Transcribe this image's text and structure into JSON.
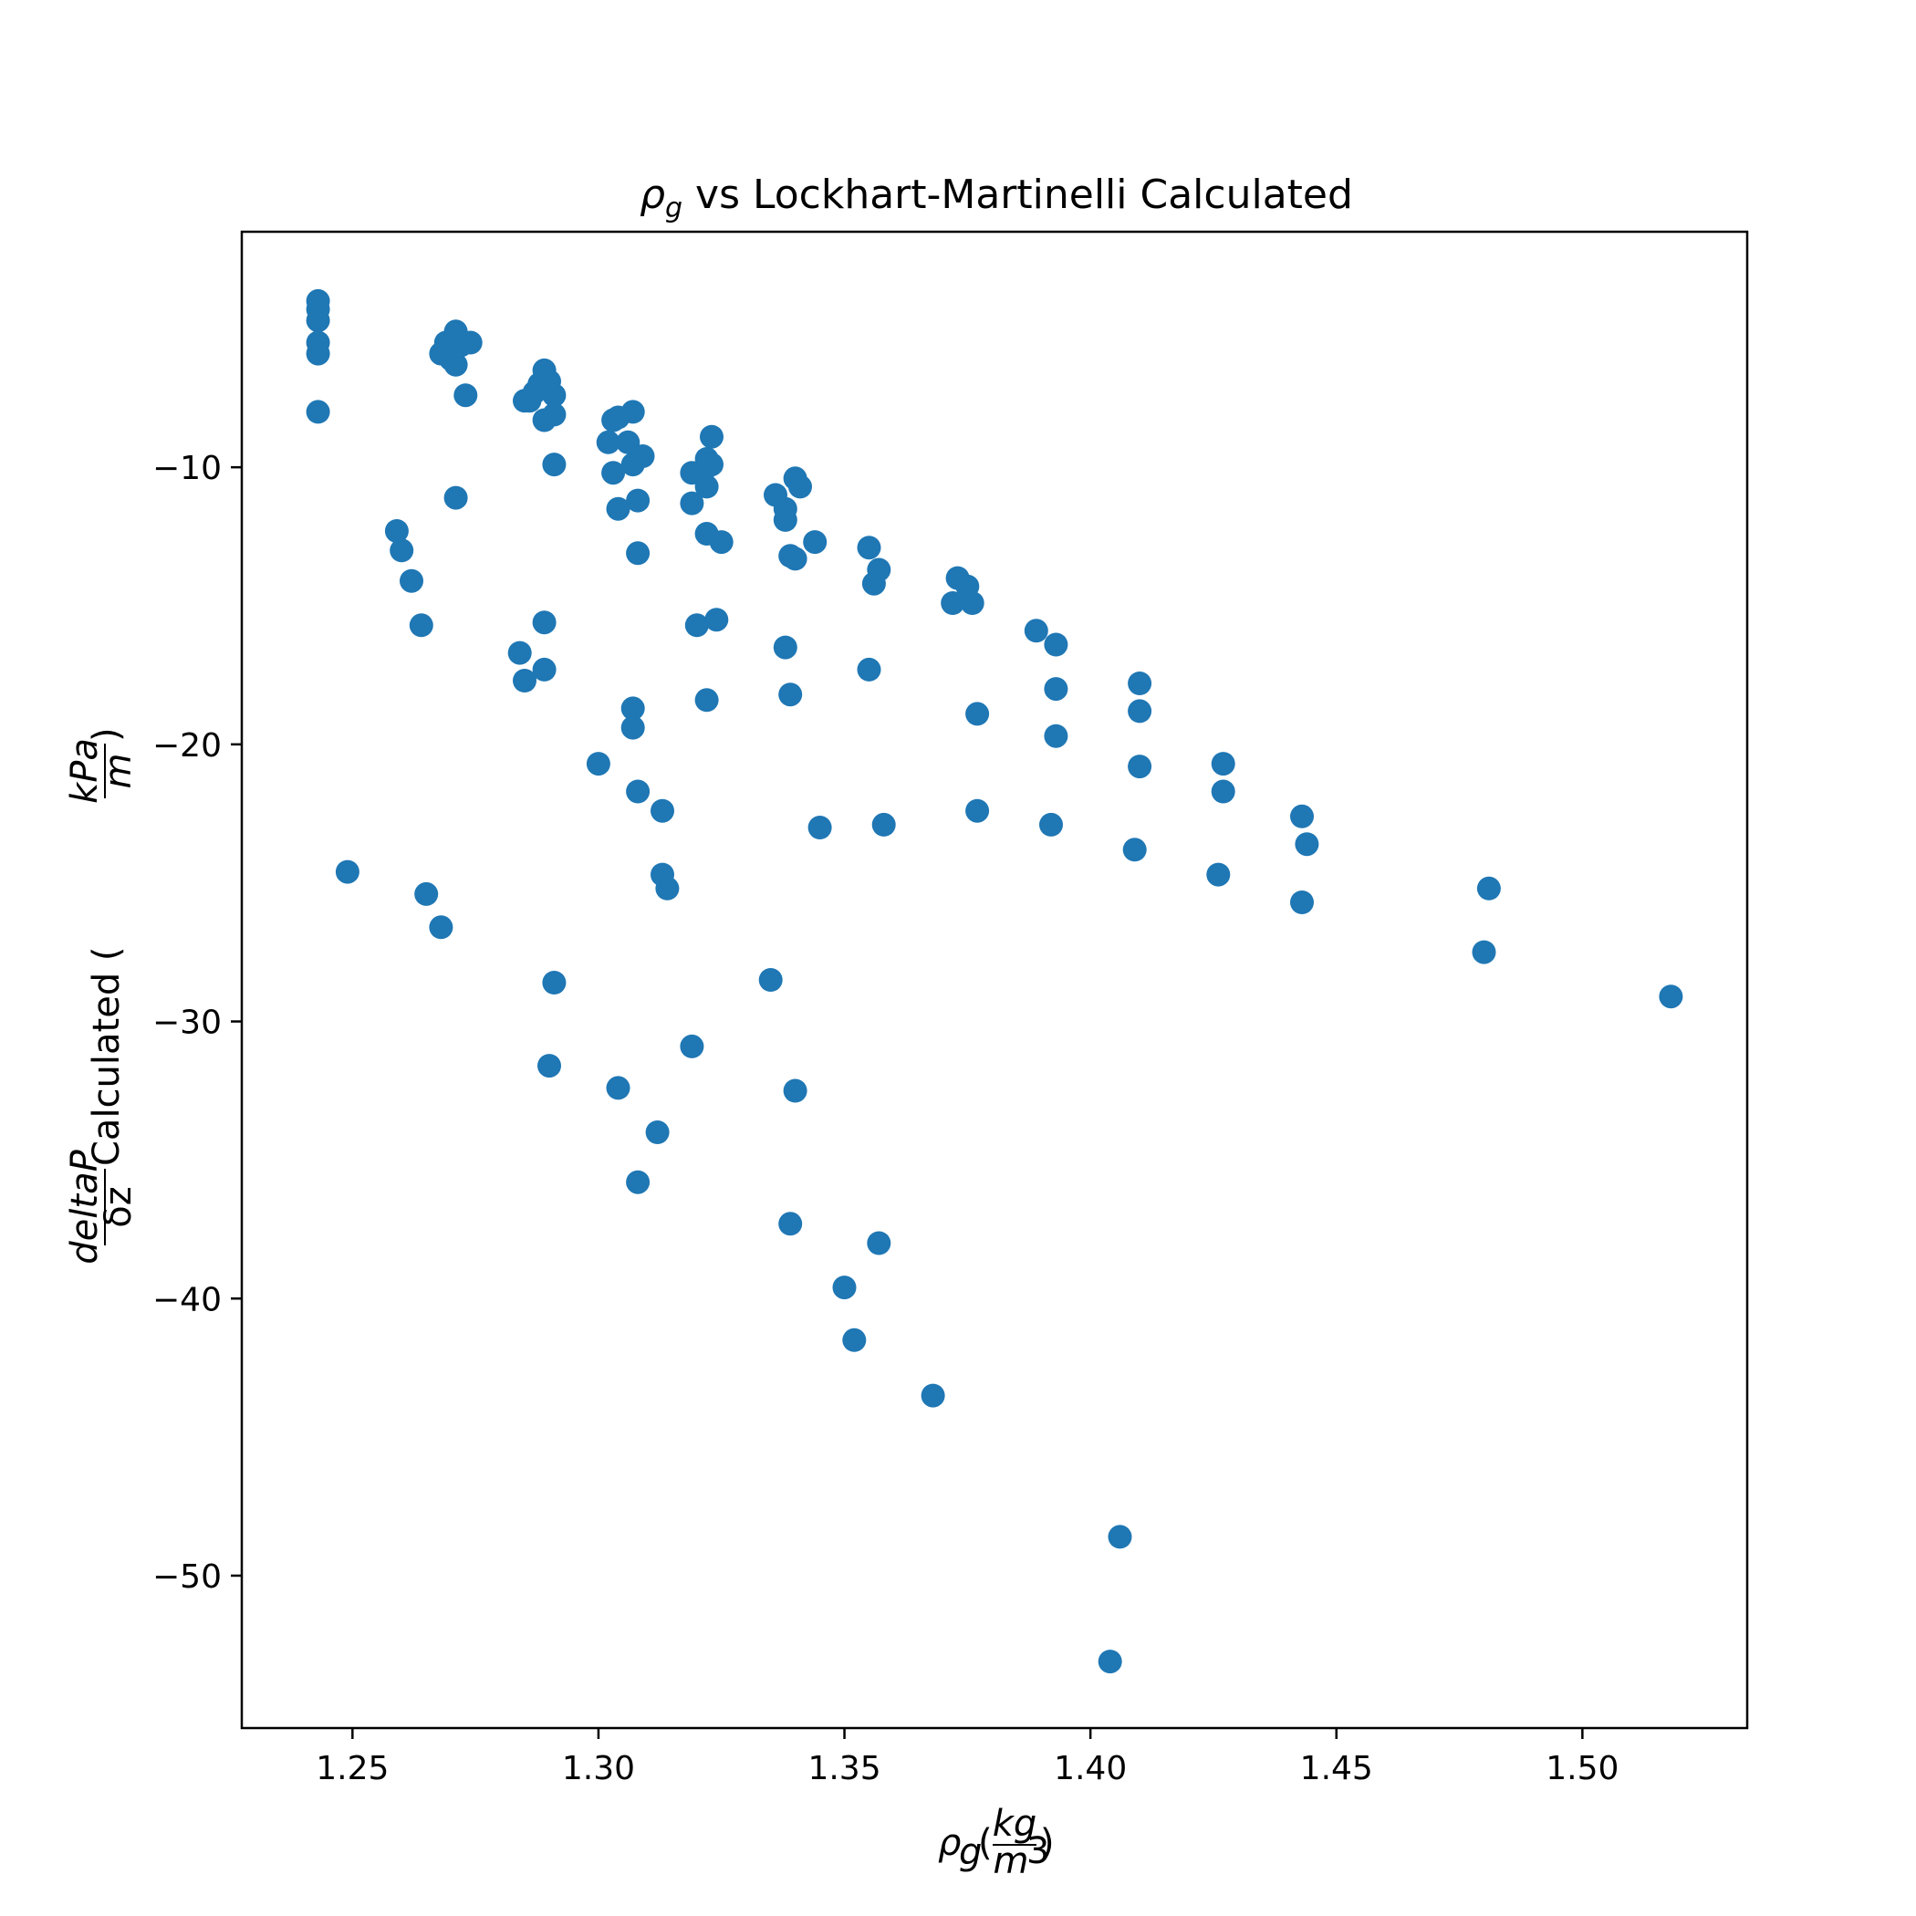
{
  "chart_data": {
    "type": "scatter",
    "title": {
      "symbol": "ρ",
      "subscript": "g",
      "rest": " vs Lockhart-Martinelli Calculated"
    },
    "xlabel": {
      "symbol": "ρ",
      "subscript": "g",
      "open": "(",
      "numerator": "kg",
      "denominator": "m",
      "denominator_power": "3",
      "close": ")"
    },
    "ylabel": {
      "frac_numerator": "deltaP",
      "frac_denominator": "δz",
      "text": " Calculated (",
      "unit_numerator": "kPa",
      "unit_denominator": "m",
      "close": ")"
    },
    "xlim": [
      1.2275,
      1.5335
    ],
    "ylim": [
      -55.5,
      -1.5
    ],
    "xticks": [
      1.25,
      1.3,
      1.35,
      1.4,
      1.45,
      1.5
    ],
    "xtick_labels": [
      "1.25",
      "1.30",
      "1.35",
      "1.40",
      "1.45",
      "1.50"
    ],
    "yticks": [
      -10,
      -20,
      -30,
      -40,
      -50
    ],
    "ytick_labels": [
      "−10",
      "−20",
      "−30",
      "−40",
      "−50"
    ],
    "grid": false,
    "marker_color": "#1f77b4",
    "points": [
      [
        1.243,
        -4.0
      ],
      [
        1.243,
        -4.3
      ],
      [
        1.243,
        -4.7
      ],
      [
        1.243,
        -5.5
      ],
      [
        1.243,
        -5.9
      ],
      [
        1.243,
        -8.0
      ],
      [
        1.249,
        -24.6
      ],
      [
        1.259,
        -12.3
      ],
      [
        1.26,
        -13.0
      ],
      [
        1.262,
        -14.1
      ],
      [
        1.264,
        -15.7
      ],
      [
        1.265,
        -25.4
      ],
      [
        1.268,
        -26.6
      ],
      [
        1.268,
        -5.9
      ],
      [
        1.269,
        -5.5
      ],
      [
        1.27,
        -6.1
      ],
      [
        1.271,
        -5.1
      ],
      [
        1.271,
        -6.3
      ],
      [
        1.272,
        -5.6
      ],
      [
        1.274,
        -5.5
      ],
      [
        1.273,
        -7.4
      ],
      [
        1.271,
        -11.1
      ],
      [
        1.285,
        -7.6
      ],
      [
        1.286,
        -7.6
      ],
      [
        1.287,
        -7.3
      ],
      [
        1.288,
        -7.0
      ],
      [
        1.289,
        -6.5
      ],
      [
        1.29,
        -6.9
      ],
      [
        1.291,
        -7.4
      ],
      [
        1.289,
        -8.3
      ],
      [
        1.291,
        -8.1
      ],
      [
        1.291,
        -9.9
      ],
      [
        1.284,
        -16.7
      ],
      [
        1.285,
        -17.7
      ],
      [
        1.289,
        -15.6
      ],
      [
        1.289,
        -17.3
      ],
      [
        1.291,
        -28.6
      ],
      [
        1.29,
        -31.6
      ],
      [
        1.302,
        -9.1
      ],
      [
        1.303,
        -8.3
      ],
      [
        1.304,
        -8.2
      ],
      [
        1.306,
        -9.1
      ],
      [
        1.307,
        -8.0
      ],
      [
        1.307,
        -9.9
      ],
      [
        1.309,
        -9.6
      ],
      [
        1.303,
        -10.2
      ],
      [
        1.304,
        -11.5
      ],
      [
        1.308,
        -11.2
      ],
      [
        1.308,
        -13.1
      ],
      [
        1.3,
        -20.7
      ],
      [
        1.307,
        -18.7
      ],
      [
        1.307,
        -19.4
      ],
      [
        1.308,
        -21.7
      ],
      [
        1.313,
        -22.4
      ],
      [
        1.313,
        -24.7
      ],
      [
        1.314,
        -25.2
      ],
      [
        1.304,
        -32.4
      ],
      [
        1.308,
        -35.8
      ],
      [
        1.312,
        -34.0
      ],
      [
        1.319,
        -10.2
      ],
      [
        1.319,
        -11.3
      ],
      [
        1.322,
        -9.7
      ],
      [
        1.322,
        -10.0
      ],
      [
        1.322,
        -10.7
      ],
      [
        1.323,
        -8.9
      ],
      [
        1.323,
        -9.9
      ],
      [
        1.322,
        -12.4
      ],
      [
        1.325,
        -12.7
      ],
      [
        1.32,
        -15.7
      ],
      [
        1.324,
        -15.5
      ],
      [
        1.322,
        -18.4
      ],
      [
        1.319,
        -30.9
      ],
      [
        1.336,
        -11.0
      ],
      [
        1.338,
        -11.5
      ],
      [
        1.338,
        -11.9
      ],
      [
        1.339,
        -13.2
      ],
      [
        1.34,
        -10.4
      ],
      [
        1.34,
        -13.3
      ],
      [
        1.341,
        -10.7
      ],
      [
        1.344,
        -12.7
      ],
      [
        1.338,
        -16.5
      ],
      [
        1.339,
        -18.2
      ],
      [
        1.345,
        -23.0
      ],
      [
        1.335,
        -28.5
      ],
      [
        1.34,
        -32.5
      ],
      [
        1.339,
        -37.3
      ],
      [
        1.355,
        -12.9
      ],
      [
        1.356,
        -14.2
      ],
      [
        1.357,
        -13.7
      ],
      [
        1.355,
        -17.3
      ],
      [
        1.358,
        -22.9
      ],
      [
        1.35,
        -39.6
      ],
      [
        1.352,
        -41.5
      ],
      [
        1.357,
        -38.0
      ],
      [
        1.368,
        -43.5
      ],
      [
        1.372,
        -14.9
      ],
      [
        1.373,
        -14.0
      ],
      [
        1.375,
        -14.3
      ],
      [
        1.376,
        -14.9
      ],
      [
        1.377,
        -18.9
      ],
      [
        1.377,
        -22.4
      ],
      [
        1.389,
        -15.9
      ],
      [
        1.393,
        -16.4
      ],
      [
        1.393,
        -18.0
      ],
      [
        1.393,
        -19.7
      ],
      [
        1.392,
        -22.9
      ],
      [
        1.409,
        -23.8
      ],
      [
        1.41,
        -17.8
      ],
      [
        1.41,
        -18.8
      ],
      [
        1.41,
        -20.8
      ],
      [
        1.406,
        -48.6
      ],
      [
        1.404,
        -53.1
      ],
      [
        1.426,
        -24.7
      ],
      [
        1.427,
        -20.7
      ],
      [
        1.427,
        -21.7
      ],
      [
        1.443,
        -22.6
      ],
      [
        1.444,
        -23.6
      ],
      [
        1.443,
        -25.7
      ],
      [
        1.48,
        -27.5
      ],
      [
        1.481,
        -25.2
      ],
      [
        1.518,
        -29.1
      ]
    ]
  }
}
